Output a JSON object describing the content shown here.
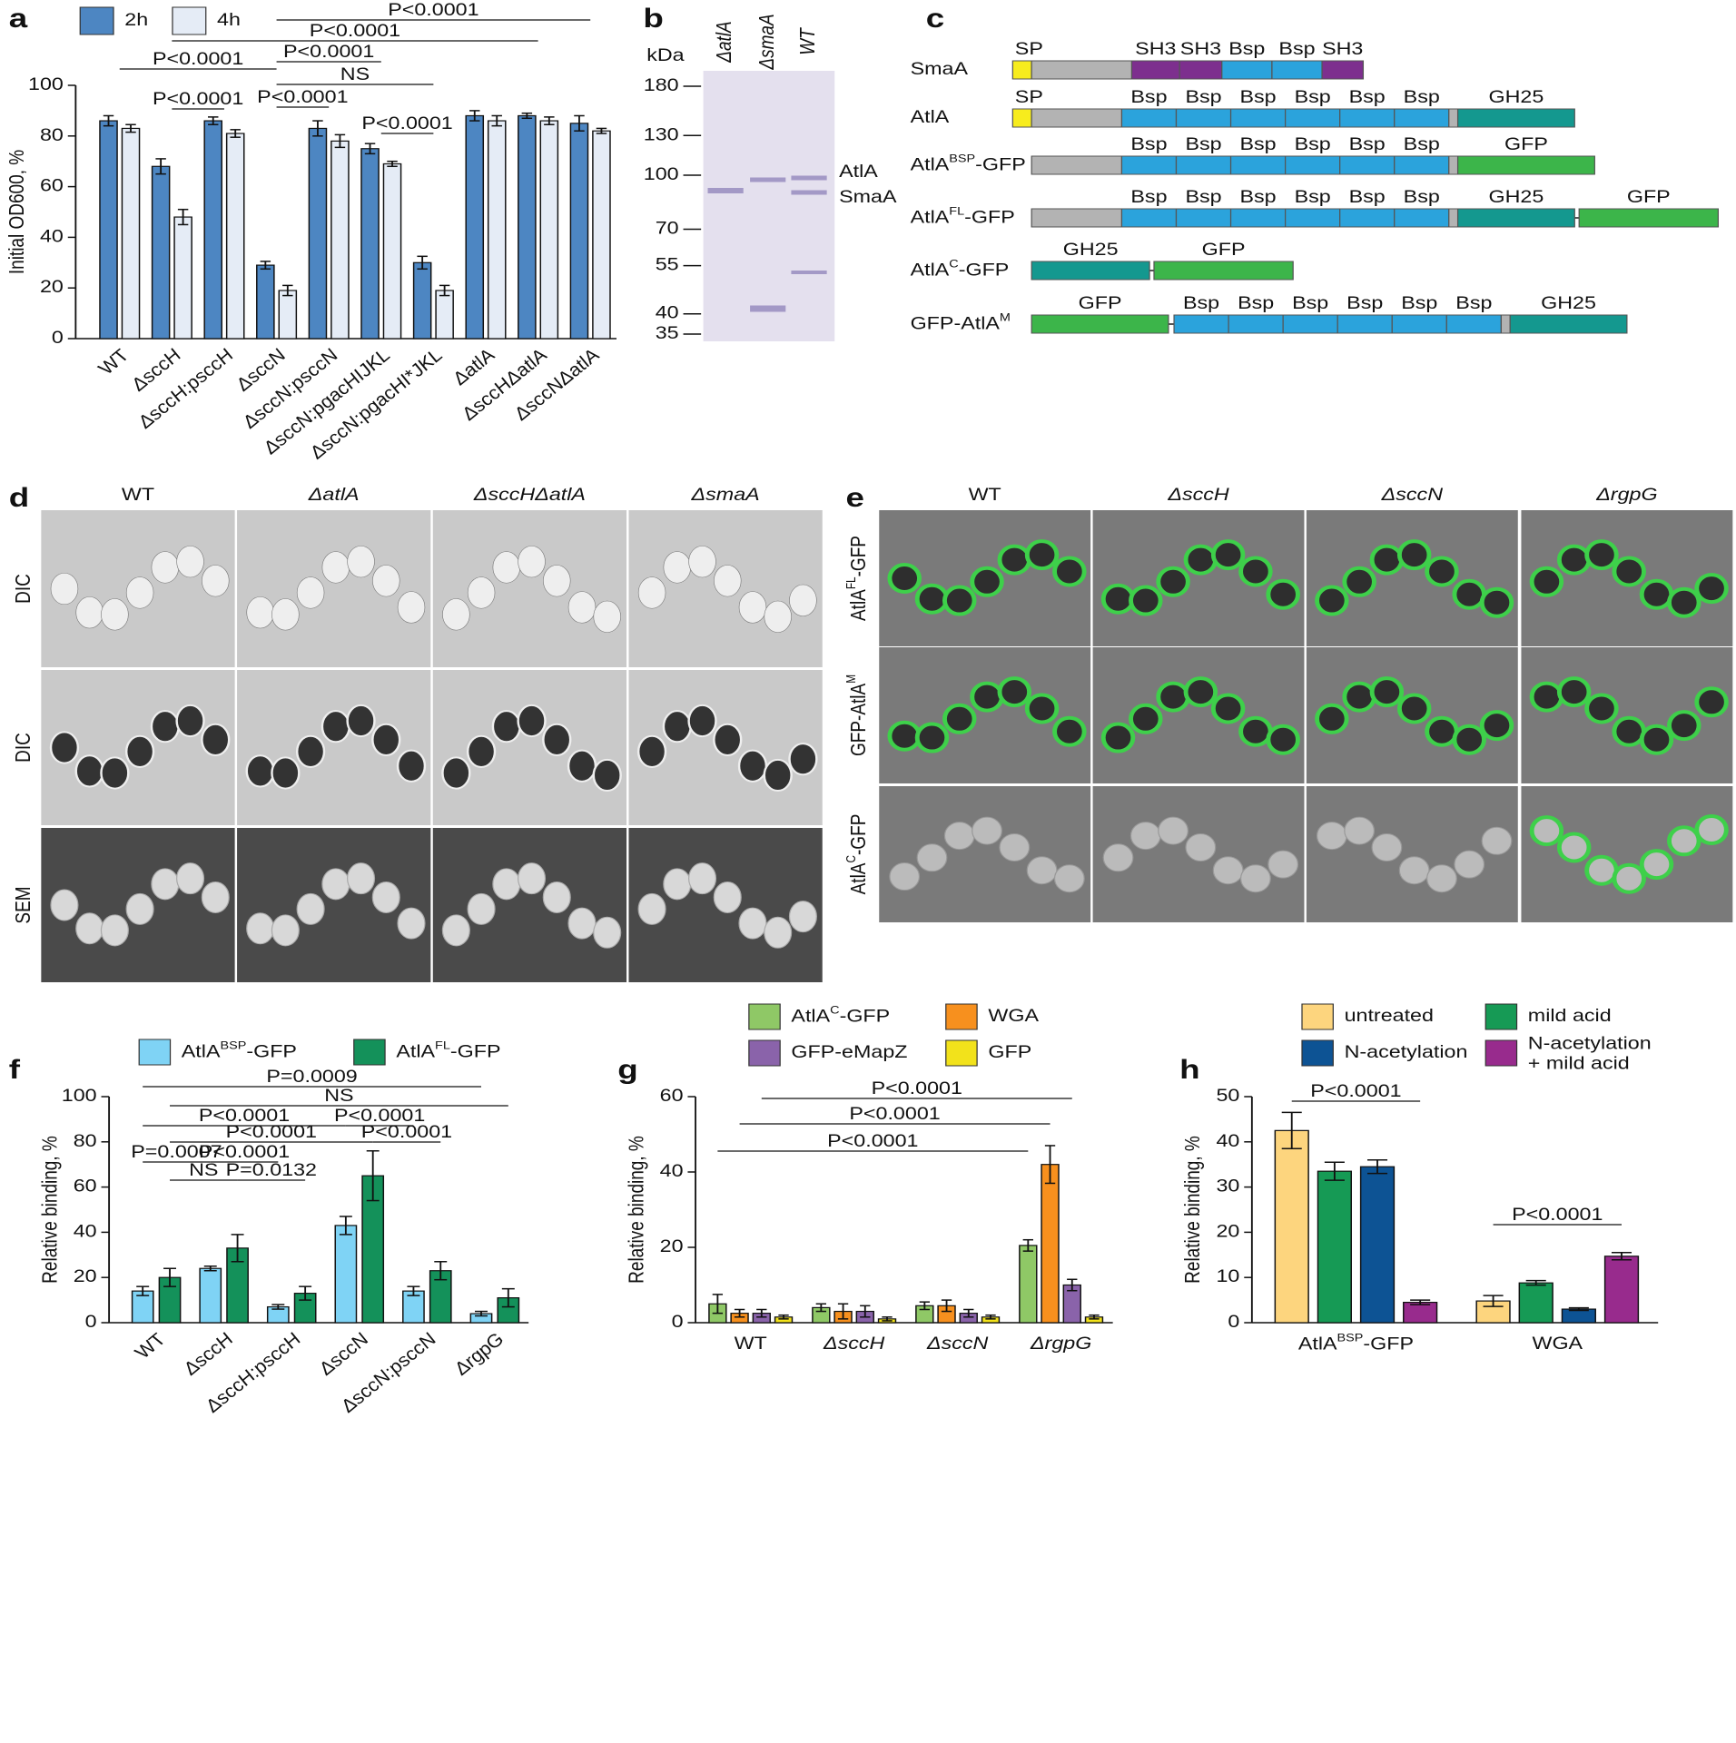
{
  "panel_labels": [
    "a",
    "b",
    "c",
    "d",
    "e",
    "f",
    "g",
    "h"
  ],
  "chart_data": [
    {
      "type": "bar",
      "ylabel": "Initial OD600, %",
      "categories": [
        "WT",
        "ΔsccH",
        "ΔsccH:psccH",
        "ΔsccN",
        "ΔsccN:psccN",
        "ΔsccN:pgacHIJKL",
        "ΔsccN:pgacHI*JKL",
        "ΔatlA",
        "ΔsccHΔatlA",
        "ΔsccNΔatlA"
      ],
      "series": [
        {
          "name": "2h",
          "color": "#4d86c2",
          "values": [
            86,
            68,
            86,
            29,
            83,
            75,
            30,
            88,
            88,
            85
          ],
          "errors": [
            2,
            3,
            1.5,
            1.5,
            3,
            2,
            2.5,
            2,
            1,
            3
          ]
        },
        {
          "name": "4h",
          "color": "#e5ecf6",
          "values": [
            83,
            48,
            81,
            19,
            78,
            69,
            19,
            86,
            86,
            82
          ],
          "errors": [
            1.5,
            3,
            1.5,
            2,
            2.5,
            1,
            2,
            2,
            1.5,
            1
          ]
        }
      ],
      "ylim": [
        0,
        100
      ],
      "yticks": [
        0,
        20,
        40,
        60,
        80,
        100
      ],
      "comparisons": [
        {
          "label": "P<0.0001",
          "from": [
            3
          ],
          "to": [
            9
          ]
        },
        {
          "label": "P<0.0001",
          "from": [
            1
          ],
          "to": [
            8
          ]
        },
        {
          "label": "P<0.0001",
          "from": [
            0
          ],
          "to": [
            3
          ]
        },
        {
          "label": "P<0.0001",
          "from": [
            3
          ],
          "to": [
            5
          ]
        },
        {
          "label": "NS",
          "from": [
            3
          ],
          "to": [
            6
          ]
        },
        {
          "label": "P<0.0001",
          "from": [
            3
          ],
          "to": [
            4
          ]
        },
        {
          "label": "P<0.0001",
          "from": [
            1
          ],
          "to": [
            2
          ]
        },
        {
          "label": "P<0.0001",
          "from": [
            5
          ],
          "to": [
            6
          ]
        }
      ]
    },
    {
      "type": "bar",
      "ylabel": "Relative binding, %",
      "categories": [
        "WT",
        "ΔsccH",
        "ΔsccH:psccH",
        "ΔsccN",
        "ΔsccN:psccN",
        "ΔrgpG"
      ],
      "series": [
        {
          "name": [
            "AtlA",
            "BSP",
            "-GFP"
          ],
          "color": "#7fd3f5",
          "values": [
            14,
            24,
            7,
            43,
            14,
            4
          ],
          "errors": [
            2,
            1,
            1,
            4,
            2,
            1
          ]
        },
        {
          "name": [
            "AtlA",
            "FL",
            "-GFP"
          ],
          "color": "#14915a",
          "values": [
            20,
            33,
            13,
            65,
            23,
            11
          ],
          "errors": [
            4,
            6,
            3,
            11,
            4,
            4
          ]
        }
      ],
      "ylim": [
        0,
        100
      ],
      "yticks": [
        0,
        20,
        40,
        60,
        80,
        100
      ],
      "comparisons": [
        {
          "label": "P=0.0009",
          "from": [
            0,
            0
          ],
          "to": [
            5,
            0
          ]
        },
        {
          "label": "NS",
          "from": [
            0,
            1
          ],
          "to": [
            5,
            1
          ]
        },
        {
          "label": "P<0.0001",
          "from": [
            0,
            0
          ],
          "to": [
            3,
            0
          ]
        },
        {
          "label": "P<0.0001",
          "from": [
            3,
            0
          ],
          "to": [
            4,
            0
          ]
        },
        {
          "label": "P<0.0001",
          "from": [
            0,
            1
          ],
          "to": [
            3,
            1
          ]
        },
        {
          "label": "P<0.0001",
          "from": [
            3,
            1
          ],
          "to": [
            4,
            1
          ]
        },
        {
          "label": "P=0.0007",
          "from": [
            0,
            0
          ],
          "to": [
            1,
            0
          ]
        },
        {
          "label": "P<0.0001",
          "from": [
            1,
            0
          ],
          "to": [
            2,
            0
          ]
        },
        {
          "label": "NS",
          "from": [
            0,
            1
          ],
          "to": [
            1,
            1
          ]
        },
        {
          "label": "P=0.0132",
          "from": [
            1,
            1
          ],
          "to": [
            2,
            1
          ]
        }
      ]
    },
    {
      "type": "bar",
      "ylabel": "Relative binding, %",
      "categories": [
        "WT",
        "ΔsccH",
        "ΔsccN",
        "ΔrgpG"
      ],
      "series": [
        {
          "name": [
            "AtlA",
            "C",
            "-GFP"
          ],
          "color": "#8fc866",
          "values": [
            5,
            4,
            4.5,
            20.5
          ],
          "errors": [
            2.5,
            1,
            1,
            1.5
          ]
        },
        {
          "name": "WGA",
          "color": "#f7901e",
          "values": [
            2.5,
            3,
            4.5,
            42
          ],
          "errors": [
            1,
            2,
            1.5,
            5
          ]
        },
        {
          "name": "GFP-eMapZ",
          "color": "#8a63aa",
          "values": [
            2.5,
            3,
            2.5,
            10
          ],
          "errors": [
            1,
            1.5,
            1,
            1.5
          ]
        },
        {
          "name": "GFP",
          "color": "#f2e21b",
          "values": [
            1.5,
            1,
            1.5,
            1.5
          ],
          "errors": [
            0.5,
            0.5,
            0.5,
            0.5
          ]
        }
      ],
      "ylim": [
        0,
        60
      ],
      "yticks": [
        0,
        20,
        40,
        60
      ],
      "comparisons": [
        {
          "label": "P<0.0001",
          "from": [
            0,
            2
          ],
          "to": [
            3,
            2
          ]
        },
        {
          "label": "P<0.0001",
          "from": [
            0,
            1
          ],
          "to": [
            3,
            1
          ]
        },
        {
          "label": "P<0.0001",
          "from": [
            0,
            0
          ],
          "to": [
            3,
            0
          ]
        }
      ]
    },
    {
      "type": "bar",
      "ylabel": "Relative binding, %",
      "categories": [
        [
          "AtlA",
          "BSP",
          "-GFP"
        ],
        "WGA"
      ],
      "series": [
        {
          "name": "untreated",
          "color": "#fdd57e",
          "values": [
            42.5,
            4.8
          ],
          "errors": [
            4,
            1.2
          ]
        },
        {
          "name": "mild acid",
          "color": "#169a55",
          "values": [
            33.5,
            8.8
          ],
          "errors": [
            2,
            0.5
          ]
        },
        {
          "name": "N-acetylation",
          "color": "#0d5394",
          "values": [
            34.5,
            3
          ],
          "errors": [
            1.5,
            0.3
          ]
        },
        {
          "name": "N-acetylation + mild acid",
          "color": "#982b8d",
          "values": [
            4.5,
            14.7
          ],
          "errors": [
            0.5,
            0.8
          ]
        }
      ],
      "ylim": [
        0,
        50
      ],
      "yticks": [
        0,
        10,
        20,
        30,
        40,
        50
      ],
      "comparisons": [
        {
          "label": "P<0.0001",
          "from": [
            0,
            0
          ],
          "to": [
            0,
            3
          ]
        },
        {
          "label": "P<0.0001",
          "from": [
            1,
            0
          ],
          "to": [
            1,
            3
          ]
        }
      ]
    }
  ],
  "gel": {
    "unit": "kDa",
    "lanes": [
      "ΔatlA",
      "ΔsmaA",
      "WT"
    ],
    "markers": [
      180,
      130,
      100,
      70,
      55,
      40,
      35
    ],
    "bands": [
      "AtlA",
      "SmaA"
    ]
  },
  "constructs": [
    {
      "label": "SmaA",
      "domains": [
        "SP",
        "SH3",
        "SH3",
        "Bsp",
        "Bsp",
        "SH3"
      ]
    },
    {
      "label": "AtlA",
      "domains": [
        "SP",
        "Bsp",
        "Bsp",
        "Bsp",
        "Bsp",
        "Bsp",
        "Bsp",
        "GH25"
      ]
    },
    {
      "label": [
        "AtlA",
        "BSP",
        "-GFP"
      ],
      "domains": [
        "Bsp",
        "Bsp",
        "Bsp",
        "Bsp",
        "Bsp",
        "Bsp",
        "GFP"
      ]
    },
    {
      "label": [
        "AtlA",
        "FL",
        "-GFP"
      ],
      "domains": [
        "Bsp",
        "Bsp",
        "Bsp",
        "Bsp",
        "Bsp",
        "Bsp",
        "GH25",
        "GFP"
      ]
    },
    {
      "label": [
        "AtlA",
        "C",
        "-GFP"
      ],
      "domains": [
        "GH25",
        "GFP"
      ]
    },
    {
      "label": [
        "GFP-AtlA",
        "M"
      ],
      "domains": [
        "GFP",
        "Bsp",
        "Bsp",
        "Bsp",
        "Bsp",
        "Bsp",
        "Bsp",
        "GH25"
      ]
    }
  ],
  "microscopy_d": {
    "columns": [
      "WT",
      "ΔatlA",
      "ΔsccHΔatlA",
      "ΔsmaA"
    ],
    "rows": [
      "DIC",
      "DIC",
      "SEM"
    ]
  },
  "microscopy_e": {
    "columns": [
      "WT",
      "ΔsccH",
      "ΔsccN",
      "ΔrgpG"
    ],
    "rows": [
      [
        "AtlA",
        "FL",
        "-GFP"
      ],
      [
        "GFP-AtlA",
        "M"
      ],
      [
        "AtlA",
        "C",
        "-GFP"
      ]
    ]
  }
}
